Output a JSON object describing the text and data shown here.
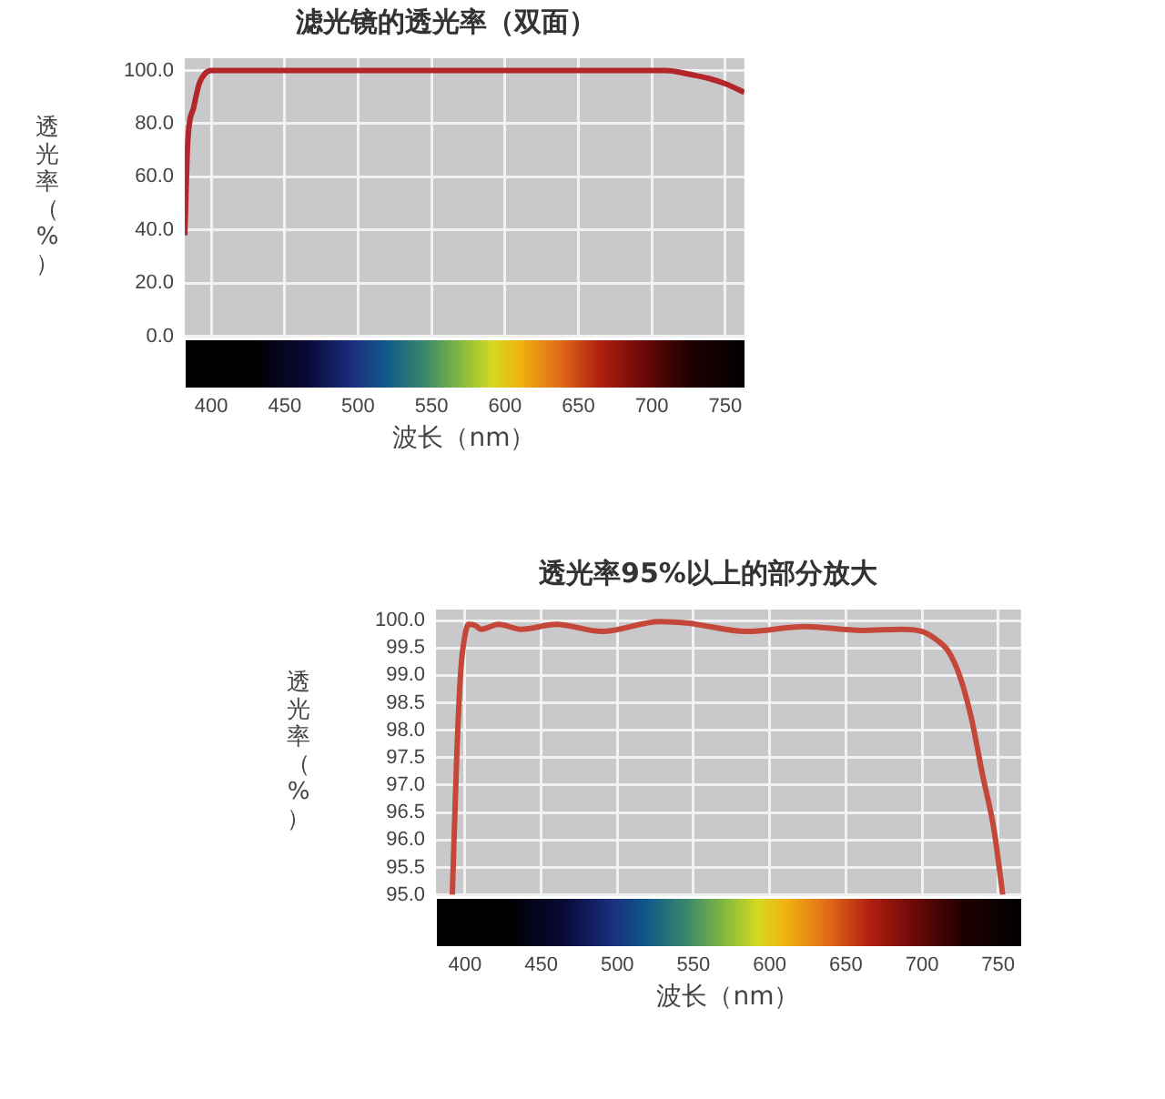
{
  "chart_data": [
    {
      "type": "line",
      "title": "滤光镜的透光率（双面）",
      "xlabel": "波长（nm）",
      "ylabel": "透光率（%）",
      "x": [
        382,
        384,
        388,
        391.8,
        395.5,
        400,
        450,
        500,
        550,
        600,
        650,
        709.6,
        724.5,
        739.5,
        750,
        763
      ],
      "series": [
        {
          "color": "#b3262a",
          "values": [
            38,
            73,
            86,
            95,
            98.7,
            100,
            100,
            100,
            100,
            100,
            100,
            100,
            98.7,
            96.9,
            95,
            91.8
          ]
        }
      ],
      "xlim": [
        382,
        763
      ],
      "ylim": [
        0,
        104.6
      ],
      "xticks": [
        400,
        450,
        500,
        550,
        600,
        650,
        700,
        750
      ],
      "yticks": [
        {
          "value": 0,
          "label": "0.0"
        },
        {
          "value": 20,
          "label": "20.0"
        },
        {
          "value": 40,
          "label": "40.0"
        },
        {
          "value": 60,
          "label": "60.0"
        },
        {
          "value": 80,
          "label": "80.0"
        },
        {
          "value": 100,
          "label": "100.0"
        }
      ],
      "grid": true
    },
    {
      "type": "line",
      "title": "透光率95%以上的部分放大",
      "xlabel": "波长（nm）",
      "ylabel": "透光率（%）",
      "x": [
        391.7,
        394.7,
        397.3,
        400,
        402.3,
        406.8,
        410.6,
        422,
        437,
        459.8,
        490,
        528,
        547,
        584.8,
        622.7,
        660.6,
        687,
        700,
        709.5,
        717,
        724.6,
        732,
        739.8,
        747.3,
        753
      ],
      "series": [
        {
          "color": "#c4473a",
          "values": [
            95,
            97.6,
            99.1,
            99.73,
            99.93,
            99.91,
            99.84,
            99.93,
            99.84,
            99.93,
            99.8,
            99.98,
            99.95,
            99.8,
            99.89,
            99.82,
            99.84,
            99.8,
            99.65,
            99.45,
            99.0,
            98.27,
            97.18,
            96.18,
            95
          ]
        }
      ],
      "xlim": [
        381,
        765
      ],
      "ylim": [
        95,
        100.2
      ],
      "xticks": [
        400,
        450,
        500,
        550,
        600,
        650,
        700,
        750
      ],
      "yticks": [
        {
          "value": 95,
          "label": "95.0"
        },
        {
          "value": 95.5,
          "label": "95.5"
        },
        {
          "value": 96,
          "label": "96.0"
        },
        {
          "value": 96.5,
          "label": "96.5"
        },
        {
          "value": 97,
          "label": "97.0"
        },
        {
          "value": 97.5,
          "label": "97.5"
        },
        {
          "value": 98,
          "label": "98.0"
        },
        {
          "value": 98.5,
          "label": "98.5"
        },
        {
          "value": 99,
          "label": "99.0"
        },
        {
          "value": 99.5,
          "label": "99.5"
        },
        {
          "value": 100,
          "label": "100.0"
        }
      ],
      "grid": true
    }
  ]
}
